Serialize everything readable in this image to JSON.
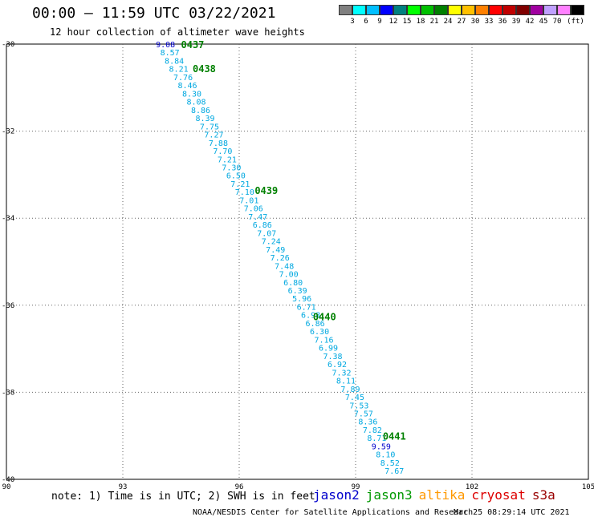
{
  "title": "00:00 – 11:59 UTC 03/22/2021",
  "subtitle": "12 hour collection of altimeter wave heights",
  "colorbar": {
    "colors": [
      "#808080",
      "#00ffff",
      "#00bfff",
      "#0000ff",
      "#008080",
      "#00ff00",
      "#00c000",
      "#008000",
      "#ffff00",
      "#ffc000",
      "#ff8000",
      "#ff0000",
      "#c00000",
      "#800000",
      "#a000a0",
      "#c0a0ff",
      "#ff80ff",
      "#000000"
    ],
    "labels": [
      "3",
      "6",
      "9",
      "12",
      "15",
      "18",
      "21",
      "24",
      "27",
      "30",
      "33",
      "36",
      "39",
      "42",
      "45",
      "70",
      "(ft)"
    ]
  },
  "map": {
    "x_ticks": [
      "90",
      "93",
      "96",
      "99",
      "102",
      "105"
    ],
    "y_ticks": [
      "-30",
      "-32",
      "-34",
      "-36",
      "-38",
      "-40"
    ],
    "x_range": [
      90,
      105
    ],
    "y_range": [
      -40,
      -30
    ]
  },
  "track": {
    "values": [
      "9.08",
      "8.57",
      "8.84",
      "8.21",
      "7.76",
      "8.46",
      "8.30",
      "8.08",
      "8.86",
      "8.39",
      "7.75",
      "7.27",
      "7.88",
      "7.70",
      "7.21",
      "7.30",
      "6.50",
      "7.21",
      "7.10",
      "7.01",
      "7.06",
      "7.47",
      "6.86",
      "7.07",
      "7.24",
      "7.49",
      "7.26",
      "7.48",
      "7.00",
      "6.80",
      "6.39",
      "5.96",
      "6.71",
      "6.98",
      "6.86",
      "6.30",
      "7.16",
      "6.99",
      "7.38",
      "6.92",
      "7.32",
      "8.11",
      "7.89",
      "7.45",
      "7.53",
      "7.57",
      "8.36",
      "7.82",
      "8.71",
      "9.59",
      "8.10",
      "8.52",
      "7.67"
    ],
    "start": {
      "lon": 93.85,
      "lat": -30.0
    },
    "end": {
      "lon": 99.75,
      "lat": -39.8
    },
    "color": "#00a8e0",
    "alt_color": "#0000cc",
    "alt_indices": [
      0,
      49
    ]
  },
  "time_labels": [
    {
      "text": "0437",
      "lon": 94.5,
      "lat": -30.0
    },
    {
      "text": "0438",
      "lon": 94.8,
      "lat": -30.55
    },
    {
      "text": "0439",
      "lon": 96.4,
      "lat": -33.35
    },
    {
      "text": "0440",
      "lon": 97.9,
      "lat": -36.25
    },
    {
      "text": "0441",
      "lon": 99.7,
      "lat": -39.0
    }
  ],
  "time_label_color": "#008000",
  "footnote": "note: 1) Time is in UTC; 2) SWH is in feet",
  "missions": [
    {
      "name": "jason2",
      "color": "#0000cc"
    },
    {
      "name": "jason3",
      "color": "#009900"
    },
    {
      "name": "altika",
      "color": "#ff9900"
    },
    {
      "name": "cryosat",
      "color": "#dd0000"
    },
    {
      "name": "s3a",
      "color": "#990000"
    }
  ],
  "credit": "NOAA/NESDIS Center for Satellite Applications and Research",
  "credit_time": "Mar 25 08:29:14 UTC 2021"
}
